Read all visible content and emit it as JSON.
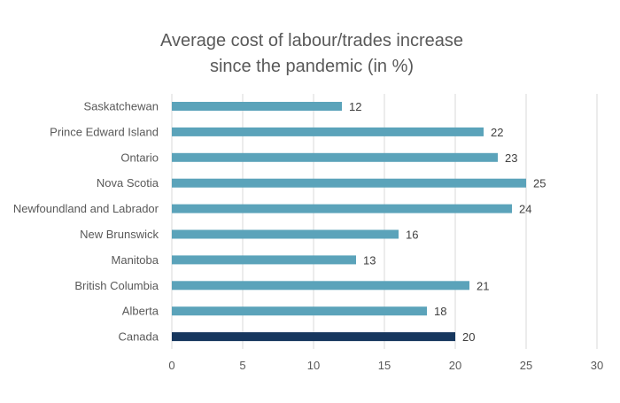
{
  "chart_data": {
    "type": "bar",
    "orientation": "horizontal",
    "title_lines": [
      "Average cost of labour/trades increase",
      "since the pandemic (in %)"
    ],
    "categories": [
      "Saskatchewan",
      "Prince Edward Island",
      "Ontario",
      "Nova Scotia",
      "Newfoundland and Labrador",
      "New Brunswick",
      "Manitoba",
      "British Columbia",
      "Alberta",
      "Canada"
    ],
    "values": [
      12,
      22,
      23,
      25,
      24,
      16,
      13,
      21,
      18,
      20
    ],
    "xlim": [
      0,
      30
    ],
    "xticks": [
      0,
      5,
      10,
      15,
      20,
      25,
      30
    ],
    "xlabel": "",
    "ylabel": "",
    "grid": true,
    "data_labels": true,
    "colors": {
      "bar": "#5ba3ba",
      "highlight": "#17375e",
      "highlight_category": "Canada",
      "grid": "#d9d9d9",
      "text": "#595959"
    }
  }
}
